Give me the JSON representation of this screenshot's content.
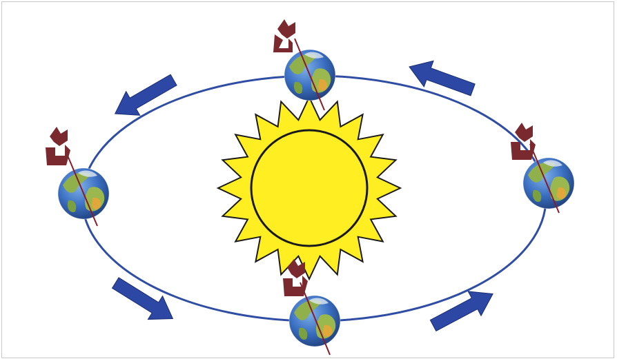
{
  "diagram": {
    "description_icons": [
      "sun-icon",
      "earth-icon",
      "axis-line",
      "rotation-arrow-icon",
      "orbit-direction-arrow-icon"
    ],
    "colors": {
      "orbit": "#2f4ea3",
      "sun_fill": "#ffee22",
      "sun_stroke": "#1a1a1a",
      "earth_ocean": "#3b6fc2",
      "earth_land": "#8fb04a",
      "earth_desert": "#e0a73a",
      "axis": "#8a1a2a",
      "rotation_arrow": "#7a2a2f",
      "orbit_arrow": "#2c47a4"
    }
  }
}
